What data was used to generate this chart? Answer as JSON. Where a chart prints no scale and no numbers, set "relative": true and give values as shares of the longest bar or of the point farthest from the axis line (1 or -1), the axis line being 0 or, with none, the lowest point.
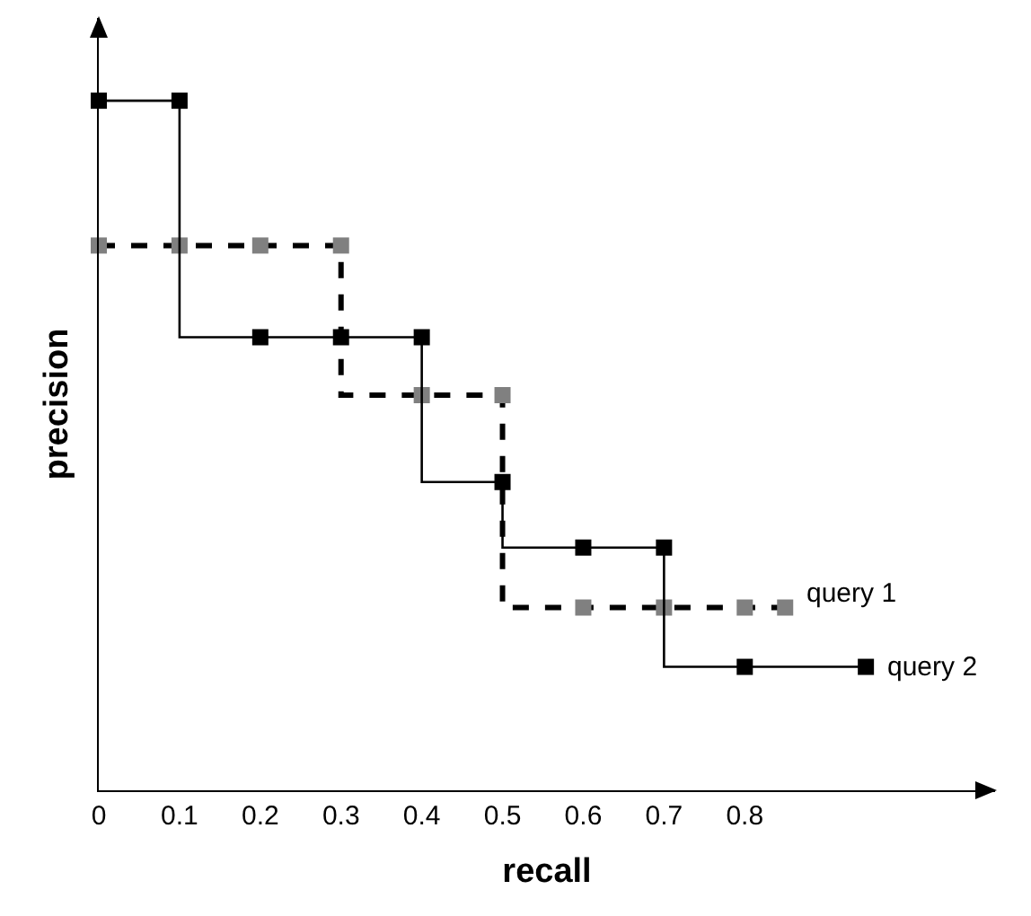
{
  "chart_data": {
    "type": "step",
    "xlabel": "recall",
    "ylabel": "precision",
    "relative": true,
    "xlim": [
      0,
      1.11
    ],
    "xticks": [
      0,
      0.1,
      0.2,
      0.3,
      0.4,
      0.5,
      0.6,
      0.7,
      0.8
    ],
    "legend": false,
    "marker": "square",
    "series": [
      {
        "name": "query 1",
        "color": "#808080",
        "line_style": "dashed",
        "x": [
          0,
          0.1,
          0.2,
          0.3,
          0.4,
          0.5,
          0.6,
          0.7,
          0.8,
          0.85
        ],
        "values": [
          0.79,
          0.79,
          0.79,
          0.79,
          0.573,
          0.573,
          0.265,
          0.265,
          0.265,
          0.265
        ]
      },
      {
        "name": "query 2",
        "color": "#000000",
        "line_style": "solid",
        "x": [
          0,
          0.1,
          0.2,
          0.3,
          0.4,
          0.5,
          0.6,
          0.7,
          0.8,
          0.95
        ],
        "values": [
          1,
          1,
          0.657,
          0.657,
          0.657,
          0.447,
          0.352,
          0.352,
          0.179,
          0.179
        ]
      }
    ]
  }
}
